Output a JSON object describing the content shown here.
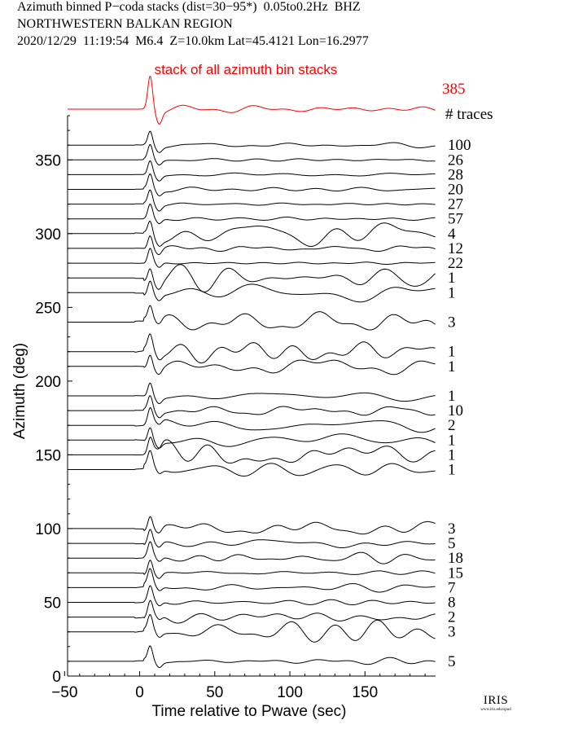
{
  "header": {
    "line1": "Azimuth binned P−coda stacks (dist=30−95*)  0.05to0.2Hz  BHZ",
    "line2": "NORTHWESTERN BALKAN REGION",
    "line3": "2020/12/29  11:19:54  M6.4  Z=10.0km Lat=45.4121 Lon=16.2977"
  },
  "colors": {
    "stack": "#ff0000",
    "traces": "#000000"
  },
  "chart_data": {
    "type": "line",
    "title": "stack of all azimuth bin stacks",
    "xlabel": "Time relative to Pwave (sec)",
    "ylabel": "Azimuth (deg)",
    "xlim": [
      -48,
      197
    ],
    "ylim": [
      0,
      380
    ],
    "xticks": [
      -50,
      0,
      50,
      100,
      150
    ],
    "yticks": [
      0,
      50,
      100,
      150,
      200,
      250,
      300,
      350
    ],
    "xtick_labels": [
      "−50",
      "0",
      "50",
      "100",
      "150"
    ],
    "ytick_labels": [
      "0",
      "50",
      "100",
      "150",
      "200",
      "250",
      "300",
      "350"
    ],
    "stack_count": "385",
    "count_header": "# traces",
    "traces": [
      {
        "azimuth": 360,
        "count": "100"
      },
      {
        "azimuth": 350,
        "count": "26"
      },
      {
        "azimuth": 340,
        "count": "28"
      },
      {
        "azimuth": 330,
        "count": "20"
      },
      {
        "azimuth": 320,
        "count": "27"
      },
      {
        "azimuth": 310,
        "count": "57"
      },
      {
        "azimuth": 300,
        "count": "4"
      },
      {
        "azimuth": 290,
        "count": "12"
      },
      {
        "azimuth": 280,
        "count": "22"
      },
      {
        "azimuth": 270,
        "count": "1"
      },
      {
        "azimuth": 260,
        "count": "1"
      },
      {
        "azimuth": 240,
        "count": "3"
      },
      {
        "azimuth": 220,
        "count": "1"
      },
      {
        "azimuth": 210,
        "count": "1"
      },
      {
        "azimuth": 190,
        "count": "1"
      },
      {
        "azimuth": 180,
        "count": "10"
      },
      {
        "azimuth": 170,
        "count": "2"
      },
      {
        "azimuth": 160,
        "count": "1"
      },
      {
        "azimuth": 150,
        "count": "1"
      },
      {
        "azimuth": 140,
        "count": "1"
      },
      {
        "azimuth": 100,
        "count": "3"
      },
      {
        "azimuth": 90,
        "count": "5"
      },
      {
        "azimuth": 80,
        "count": "18"
      },
      {
        "azimuth": 70,
        "count": "15"
      },
      {
        "azimuth": 60,
        "count": "7"
      },
      {
        "azimuth": 50,
        "count": "8"
      },
      {
        "azimuth": 40,
        "count": "2"
      },
      {
        "azimuth": 30,
        "count": "3"
      },
      {
        "azimuth": 10,
        "count": "5"
      }
    ]
  },
  "logo": {
    "text": "IRIS",
    "url_text": "www.iris.edu/spud"
  }
}
